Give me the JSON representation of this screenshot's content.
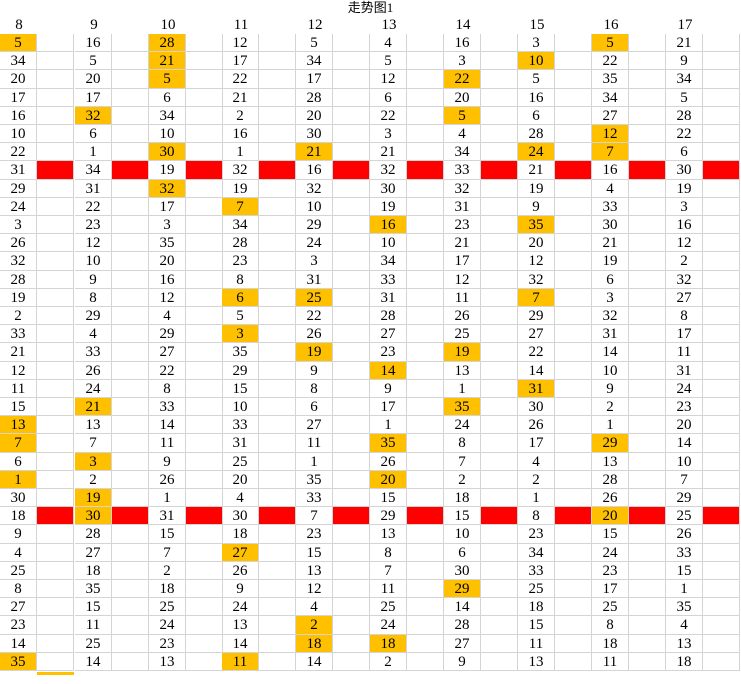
{
  "sheet": {
    "title": "走势图1",
    "columns": [
      "8",
      "9",
      "10",
      "11",
      "12",
      "13",
      "14",
      "15",
      "16",
      "17"
    ],
    "highlight_color": "#ffc000",
    "separator_color": "#ff0000",
    "rows": [
      [
        "5",
        "16",
        "28",
        "12",
        "5",
        "4",
        "16",
        "3",
        "5",
        "21"
      ],
      [
        "34",
        "5",
        "21",
        "17",
        "34",
        "5",
        "3",
        "10",
        "22",
        "9"
      ],
      [
        "20",
        "20",
        "5",
        "22",
        "17",
        "12",
        "22",
        "5",
        "35",
        "34"
      ],
      [
        "17",
        "17",
        "6",
        "21",
        "28",
        "6",
        "20",
        "16",
        "34",
        "5"
      ],
      [
        "16",
        "32",
        "34",
        "2",
        "20",
        "22",
        "5",
        "6",
        "27",
        "28"
      ],
      [
        "10",
        "6",
        "10",
        "16",
        "30",
        "3",
        "4",
        "28",
        "12",
        "22"
      ],
      [
        "22",
        "1",
        "30",
        "1",
        "21",
        "21",
        "34",
        "24",
        "7",
        "6"
      ],
      [
        "31",
        "34",
        "19",
        "32",
        "16",
        "32",
        "33",
        "21",
        "16",
        "30"
      ],
      [
        "29",
        "31",
        "32",
        "19",
        "32",
        "30",
        "32",
        "19",
        "4",
        "19"
      ],
      [
        "24",
        "22",
        "17",
        "7",
        "10",
        "19",
        "31",
        "9",
        "33",
        "3"
      ],
      [
        "3",
        "23",
        "3",
        "34",
        "29",
        "16",
        "23",
        "35",
        "30",
        "16"
      ],
      [
        "26",
        "12",
        "35",
        "28",
        "24",
        "10",
        "21",
        "20",
        "21",
        "12"
      ],
      [
        "32",
        "10",
        "20",
        "23",
        "3",
        "34",
        "17",
        "12",
        "19",
        "2"
      ],
      [
        "28",
        "9",
        "16",
        "8",
        "31",
        "33",
        "12",
        "32",
        "6",
        "32"
      ],
      [
        "19",
        "8",
        "12",
        "6",
        "25",
        "31",
        "11",
        "7",
        "3",
        "27"
      ],
      [
        "2",
        "29",
        "4",
        "5",
        "22",
        "28",
        "26",
        "29",
        "32",
        "8"
      ],
      [
        "33",
        "4",
        "29",
        "3",
        "26",
        "27",
        "25",
        "27",
        "31",
        "17"
      ],
      [
        "21",
        "33",
        "27",
        "35",
        "19",
        "23",
        "19",
        "22",
        "14",
        "11"
      ],
      [
        "12",
        "26",
        "22",
        "29",
        "9",
        "14",
        "13",
        "14",
        "10",
        "31"
      ],
      [
        "11",
        "24",
        "8",
        "15",
        "8",
        "9",
        "1",
        "31",
        "9",
        "24"
      ],
      [
        "15",
        "21",
        "33",
        "10",
        "6",
        "17",
        "35",
        "30",
        "2",
        "23"
      ],
      [
        "13",
        "13",
        "14",
        "33",
        "27",
        "1",
        "24",
        "26",
        "1",
        "20"
      ],
      [
        "7",
        "7",
        "11",
        "31",
        "11",
        "35",
        "8",
        "17",
        "29",
        "14"
      ],
      [
        "6",
        "3",
        "9",
        "25",
        "1",
        "26",
        "7",
        "4",
        "13",
        "10"
      ],
      [
        "1",
        "2",
        "26",
        "20",
        "35",
        "20",
        "2",
        "2",
        "28",
        "7"
      ],
      [
        "30",
        "19",
        "1",
        "4",
        "33",
        "15",
        "18",
        "1",
        "26",
        "29"
      ],
      [
        "18",
        "30",
        "31",
        "30",
        "7",
        "29",
        "15",
        "8",
        "20",
        "25"
      ],
      [
        "9",
        "28",
        "15",
        "18",
        "23",
        "13",
        "10",
        "23",
        "15",
        "26"
      ],
      [
        "4",
        "27",
        "7",
        "27",
        "15",
        "8",
        "6",
        "34",
        "24",
        "33"
      ],
      [
        "25",
        "18",
        "2",
        "26",
        "13",
        "7",
        "30",
        "33",
        "23",
        "15"
      ],
      [
        "8",
        "35",
        "18",
        "9",
        "12",
        "11",
        "29",
        "25",
        "17",
        "1"
      ],
      [
        "27",
        "15",
        "25",
        "24",
        "4",
        "25",
        "14",
        "18",
        "25",
        "35"
      ],
      [
        "23",
        "11",
        "24",
        "13",
        "2",
        "24",
        "28",
        "15",
        "8",
        "4"
      ],
      [
        "14",
        "25",
        "23",
        "14",
        "18",
        "18",
        "27",
        "11",
        "18",
        "13"
      ],
      [
        "35",
        "14",
        "13",
        "11",
        "14",
        "2",
        "9",
        "13",
        "11",
        "18"
      ]
    ],
    "highlights": [
      [
        0,
        0
      ],
      [
        0,
        2
      ],
      [
        0,
        8
      ],
      [
        1,
        2
      ],
      [
        1,
        7
      ],
      [
        2,
        2
      ],
      [
        2,
        6
      ],
      [
        4,
        1
      ],
      [
        4,
        6
      ],
      [
        5,
        8
      ],
      [
        6,
        2
      ],
      [
        6,
        4
      ],
      [
        6,
        7
      ],
      [
        6,
        8
      ],
      [
        8,
        2
      ],
      [
        9,
        3
      ],
      [
        10,
        5
      ],
      [
        10,
        7
      ],
      [
        14,
        3
      ],
      [
        14,
        4
      ],
      [
        14,
        7
      ],
      [
        16,
        3
      ],
      [
        17,
        4
      ],
      [
        17,
        6
      ],
      [
        18,
        5
      ],
      [
        19,
        7
      ],
      [
        20,
        1
      ],
      [
        20,
        6
      ],
      [
        21,
        0
      ],
      [
        22,
        0
      ],
      [
        22,
        5
      ],
      [
        22,
        8
      ],
      [
        23,
        1
      ],
      [
        24,
        0
      ],
      [
        24,
        5
      ],
      [
        25,
        1
      ],
      [
        26,
        1
      ],
      [
        26,
        8
      ],
      [
        28,
        3
      ],
      [
        30,
        6
      ],
      [
        32,
        4
      ],
      [
        33,
        4
      ],
      [
        33,
        5
      ],
      [
        34,
        0
      ],
      [
        34,
        3
      ]
    ],
    "separator_rows": [
      7,
      26
    ]
  }
}
